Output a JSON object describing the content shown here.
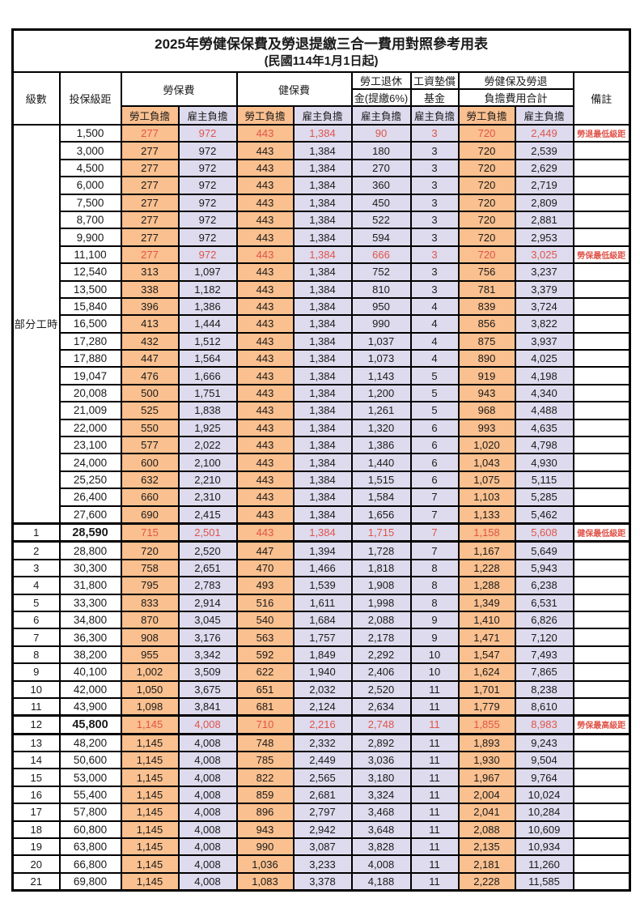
{
  "title": "2025年勞健保保費及勞退提繳三合一費用對照參考用表",
  "subtitle": "(民國114年1月1日起)",
  "colors": {
    "employee_bg": "#fac08f",
    "employer_bg": "#dedbee",
    "highlight_text": "#e0544a"
  },
  "header": {
    "level": "級數",
    "bracket": "投保級距",
    "labor_insurance": "勞保費",
    "health_insurance": "健保費",
    "pension_line1": "勞工退休",
    "pension_line2": "金(提繳6%)",
    "wage_fund_line1": "工資墊償",
    "wage_fund_line2": "基金",
    "total_line1": "勞健保及勞退",
    "total_line2": "負擔費用合計",
    "remark": "備註",
    "employee_share": "勞工負擔",
    "employer_share": "雇主負擔"
  },
  "part_time_label": "部分工時",
  "part_time_rowspan": 23,
  "rows": [
    {
      "lv": "",
      "b": "1,500",
      "v": [
        "277",
        "972",
        "443",
        "1,384",
        "90",
        "3",
        "720",
        "2,449"
      ],
      "rm": "勞退最低級距",
      "red": true,
      "em": false
    },
    {
      "lv": "",
      "b": "3,000",
      "v": [
        "277",
        "972",
        "443",
        "1,384",
        "180",
        "3",
        "720",
        "2,539"
      ],
      "rm": "",
      "red": false,
      "em": false
    },
    {
      "lv": "",
      "b": "4,500",
      "v": [
        "277",
        "972",
        "443",
        "1,384",
        "270",
        "3",
        "720",
        "2,629"
      ],
      "rm": "",
      "red": false,
      "em": false
    },
    {
      "lv": "",
      "b": "6,000",
      "v": [
        "277",
        "972",
        "443",
        "1,384",
        "360",
        "3",
        "720",
        "2,719"
      ],
      "rm": "",
      "red": false,
      "em": false
    },
    {
      "lv": "",
      "b": "7,500",
      "v": [
        "277",
        "972",
        "443",
        "1,384",
        "450",
        "3",
        "720",
        "2,809"
      ],
      "rm": "",
      "red": false,
      "em": false
    },
    {
      "lv": "",
      "b": "8,700",
      "v": [
        "277",
        "972",
        "443",
        "1,384",
        "522",
        "3",
        "720",
        "2,881"
      ],
      "rm": "",
      "red": false,
      "em": false
    },
    {
      "lv": "",
      "b": "9,900",
      "v": [
        "277",
        "972",
        "443",
        "1,384",
        "594",
        "3",
        "720",
        "2,953"
      ],
      "rm": "",
      "red": false,
      "em": false
    },
    {
      "lv": "",
      "b": "11,100",
      "v": [
        "277",
        "972",
        "443",
        "1,384",
        "666",
        "3",
        "720",
        "3,025"
      ],
      "rm": "勞保最低級距",
      "red": true,
      "em": false
    },
    {
      "lv": "",
      "b": "12,540",
      "v": [
        "313",
        "1,097",
        "443",
        "1,384",
        "752",
        "3",
        "756",
        "3,237"
      ],
      "rm": "",
      "red": false,
      "em": false
    },
    {
      "lv": "",
      "b": "13,500",
      "v": [
        "338",
        "1,182",
        "443",
        "1,384",
        "810",
        "3",
        "781",
        "3,379"
      ],
      "rm": "",
      "red": false,
      "em": false
    },
    {
      "lv": "",
      "b": "15,840",
      "v": [
        "396",
        "1,386",
        "443",
        "1,384",
        "950",
        "4",
        "839",
        "3,724"
      ],
      "rm": "",
      "red": false,
      "em": false
    },
    {
      "lv": "",
      "b": "16,500",
      "v": [
        "413",
        "1,444",
        "443",
        "1,384",
        "990",
        "4",
        "856",
        "3,822"
      ],
      "rm": "",
      "red": false,
      "em": false
    },
    {
      "lv": "",
      "b": "17,280",
      "v": [
        "432",
        "1,512",
        "443",
        "1,384",
        "1,037",
        "4",
        "875",
        "3,937"
      ],
      "rm": "",
      "red": false,
      "em": false
    },
    {
      "lv": "",
      "b": "17,880",
      "v": [
        "447",
        "1,564",
        "443",
        "1,384",
        "1,073",
        "4",
        "890",
        "4,025"
      ],
      "rm": "",
      "red": false,
      "em": false
    },
    {
      "lv": "",
      "b": "19,047",
      "v": [
        "476",
        "1,666",
        "443",
        "1,384",
        "1,143",
        "5",
        "919",
        "4,198"
      ],
      "rm": "",
      "red": false,
      "em": false
    },
    {
      "lv": "",
      "b": "20,008",
      "v": [
        "500",
        "1,751",
        "443",
        "1,384",
        "1,200",
        "5",
        "943",
        "4,340"
      ],
      "rm": "",
      "red": false,
      "em": false
    },
    {
      "lv": "",
      "b": "21,009",
      "v": [
        "525",
        "1,838",
        "443",
        "1,384",
        "1,261",
        "5",
        "968",
        "4,488"
      ],
      "rm": "",
      "red": false,
      "em": false
    },
    {
      "lv": "",
      "b": "22,000",
      "v": [
        "550",
        "1,925",
        "443",
        "1,384",
        "1,320",
        "6",
        "993",
        "4,635"
      ],
      "rm": "",
      "red": false,
      "em": false
    },
    {
      "lv": "",
      "b": "23,100",
      "v": [
        "577",
        "2,022",
        "443",
        "1,384",
        "1,386",
        "6",
        "1,020",
        "4,798"
      ],
      "rm": "",
      "red": false,
      "em": false
    },
    {
      "lv": "",
      "b": "24,000",
      "v": [
        "600",
        "2,100",
        "443",
        "1,384",
        "1,440",
        "6",
        "1,043",
        "4,930"
      ],
      "rm": "",
      "red": false,
      "em": false
    },
    {
      "lv": "",
      "b": "25,250",
      "v": [
        "632",
        "2,210",
        "443",
        "1,384",
        "1,515",
        "6",
        "1,075",
        "5,115"
      ],
      "rm": "",
      "red": false,
      "em": false
    },
    {
      "lv": "",
      "b": "26,400",
      "v": [
        "660",
        "2,310",
        "443",
        "1,384",
        "1,584",
        "7",
        "1,103",
        "5,285"
      ],
      "rm": "",
      "red": false,
      "em": false
    },
    {
      "lv": "",
      "b": "27,600",
      "v": [
        "690",
        "2,415",
        "443",
        "1,384",
        "1,656",
        "7",
        "1,133",
        "5,462"
      ],
      "rm": "",
      "red": false,
      "em": false
    },
    {
      "lv": "1",
      "b": "28,590",
      "v": [
        "715",
        "2,501",
        "443",
        "1,384",
        "1,715",
        "7",
        "1,158",
        "5,608"
      ],
      "rm": "健保最低級距",
      "red": true,
      "em": true
    },
    {
      "lv": "2",
      "b": "28,800",
      "v": [
        "720",
        "2,520",
        "447",
        "1,394",
        "1,728",
        "7",
        "1,167",
        "5,649"
      ],
      "rm": "",
      "red": false,
      "em": false
    },
    {
      "lv": "3",
      "b": "30,300",
      "v": [
        "758",
        "2,651",
        "470",
        "1,466",
        "1,818",
        "8",
        "1,228",
        "5,943"
      ],
      "rm": "",
      "red": false,
      "em": false
    },
    {
      "lv": "4",
      "b": "31,800",
      "v": [
        "795",
        "2,783",
        "493",
        "1,539",
        "1,908",
        "8",
        "1,288",
        "6,238"
      ],
      "rm": "",
      "red": false,
      "em": false
    },
    {
      "lv": "5",
      "b": "33,300",
      "v": [
        "833",
        "2,914",
        "516",
        "1,611",
        "1,998",
        "8",
        "1,349",
        "6,531"
      ],
      "rm": "",
      "red": false,
      "em": false
    },
    {
      "lv": "6",
      "b": "34,800",
      "v": [
        "870",
        "3,045",
        "540",
        "1,684",
        "2,088",
        "9",
        "1,410",
        "6,826"
      ],
      "rm": "",
      "red": false,
      "em": false
    },
    {
      "lv": "7",
      "b": "36,300",
      "v": [
        "908",
        "3,176",
        "563",
        "1,757",
        "2,178",
        "9",
        "1,471",
        "7,120"
      ],
      "rm": "",
      "red": false,
      "em": false
    },
    {
      "lv": "8",
      "b": "38,200",
      "v": [
        "955",
        "3,342",
        "592",
        "1,849",
        "2,292",
        "10",
        "1,547",
        "7,493"
      ],
      "rm": "",
      "red": false,
      "em": false
    },
    {
      "lv": "9",
      "b": "40,100",
      "v": [
        "1,002",
        "3,509",
        "622",
        "1,940",
        "2,406",
        "10",
        "1,624",
        "7,865"
      ],
      "rm": "",
      "red": false,
      "em": false
    },
    {
      "lv": "10",
      "b": "42,000",
      "v": [
        "1,050",
        "3,675",
        "651",
        "2,032",
        "2,520",
        "11",
        "1,701",
        "8,238"
      ],
      "rm": "",
      "red": false,
      "em": false
    },
    {
      "lv": "11",
      "b": "43,900",
      "v": [
        "1,098",
        "3,841",
        "681",
        "2,124",
        "2,634",
        "11",
        "1,779",
        "8,610"
      ],
      "rm": "",
      "red": false,
      "em": false
    },
    {
      "lv": "12",
      "b": "45,800",
      "v": [
        "1,145",
        "4,008",
        "710",
        "2,216",
        "2,748",
        "11",
        "1,855",
        "8,983"
      ],
      "rm": "勞保最高級距",
      "red": true,
      "em": true
    },
    {
      "lv": "13",
      "b": "48,200",
      "v": [
        "1,145",
        "4,008",
        "748",
        "2,332",
        "2,892",
        "11",
        "1,893",
        "9,243"
      ],
      "rm": "",
      "red": false,
      "em": false
    },
    {
      "lv": "14",
      "b": "50,600",
      "v": [
        "1,145",
        "4,008",
        "785",
        "2,449",
        "3,036",
        "11",
        "1,930",
        "9,504"
      ],
      "rm": "",
      "red": false,
      "em": false
    },
    {
      "lv": "15",
      "b": "53,000",
      "v": [
        "1,145",
        "4,008",
        "822",
        "2,565",
        "3,180",
        "11",
        "1,967",
        "9,764"
      ],
      "rm": "",
      "red": false,
      "em": false
    },
    {
      "lv": "16",
      "b": "55,400",
      "v": [
        "1,145",
        "4,008",
        "859",
        "2,681",
        "3,324",
        "11",
        "2,004",
        "10,024"
      ],
      "rm": "",
      "red": false,
      "em": false
    },
    {
      "lv": "17",
      "b": "57,800",
      "v": [
        "1,145",
        "4,008",
        "896",
        "2,797",
        "3,468",
        "11",
        "2,041",
        "10,284"
      ],
      "rm": "",
      "red": false,
      "em": false
    },
    {
      "lv": "18",
      "b": "60,800",
      "v": [
        "1,145",
        "4,008",
        "943",
        "2,942",
        "3,648",
        "11",
        "2,088",
        "10,609"
      ],
      "rm": "",
      "red": false,
      "em": false
    },
    {
      "lv": "19",
      "b": "63,800",
      "v": [
        "1,145",
        "4,008",
        "990",
        "3,087",
        "3,828",
        "11",
        "2,135",
        "10,934"
      ],
      "rm": "",
      "red": false,
      "em": false
    },
    {
      "lv": "20",
      "b": "66,800",
      "v": [
        "1,145",
        "4,008",
        "1,036",
        "3,233",
        "4,008",
        "11",
        "2,181",
        "11,260"
      ],
      "rm": "",
      "red": false,
      "em": false
    },
    {
      "lv": "21",
      "b": "69,800",
      "v": [
        "1,145",
        "4,008",
        "1,083",
        "3,378",
        "4,188",
        "11",
        "2,228",
        "11,585"
      ],
      "rm": "",
      "red": false,
      "em": false
    }
  ]
}
